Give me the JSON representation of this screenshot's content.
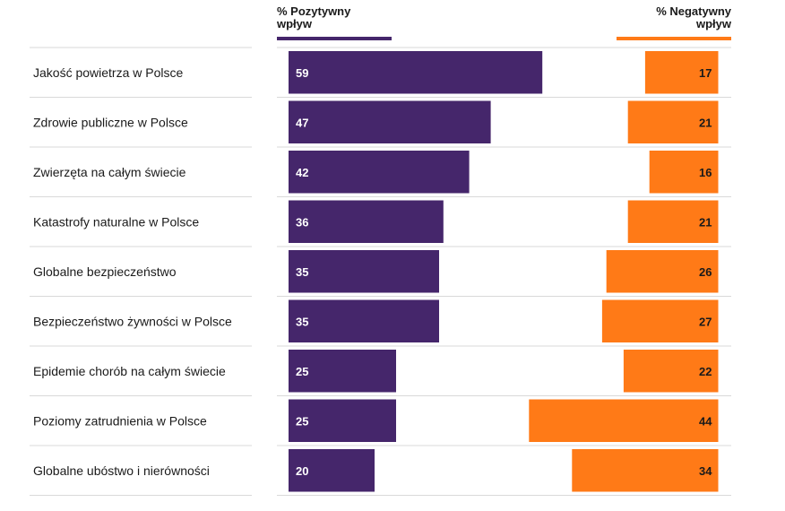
{
  "headers": {
    "positive": "% Pozytywny\nwpływ",
    "negative": "% Negatywny\nwpływ"
  },
  "colors": {
    "positive": "#45266b",
    "negative": "#ff7a17",
    "divider": "#d9d9d9",
    "text": "#1a1a1a"
  },
  "chart_data": {
    "type": "bar",
    "categories": [
      "Jakość powietrza w Polsce",
      "Zdrowie publiczne w Polsce",
      "Zwierzęta na całym świecie",
      "Katastrofy naturalne w Polsce",
      "Globalne bezpieczeństwo",
      "Bezpieczeństwo żywności w Polsce",
      "Epidemie chorób na całym świecie",
      "Poziomy zatrudnienia w Polsce",
      "Globalne ubóstwo i nierówności"
    ],
    "series": [
      {
        "name": "% Pozytywny wpływ",
        "values": [
          59,
          47,
          42,
          36,
          35,
          35,
          25,
          25,
          20
        ]
      },
      {
        "name": "% Negatywny wpływ",
        "values": [
          17,
          21,
          16,
          21,
          26,
          27,
          22,
          44,
          34
        ]
      }
    ],
    "xlim": [
      0,
      100
    ]
  }
}
